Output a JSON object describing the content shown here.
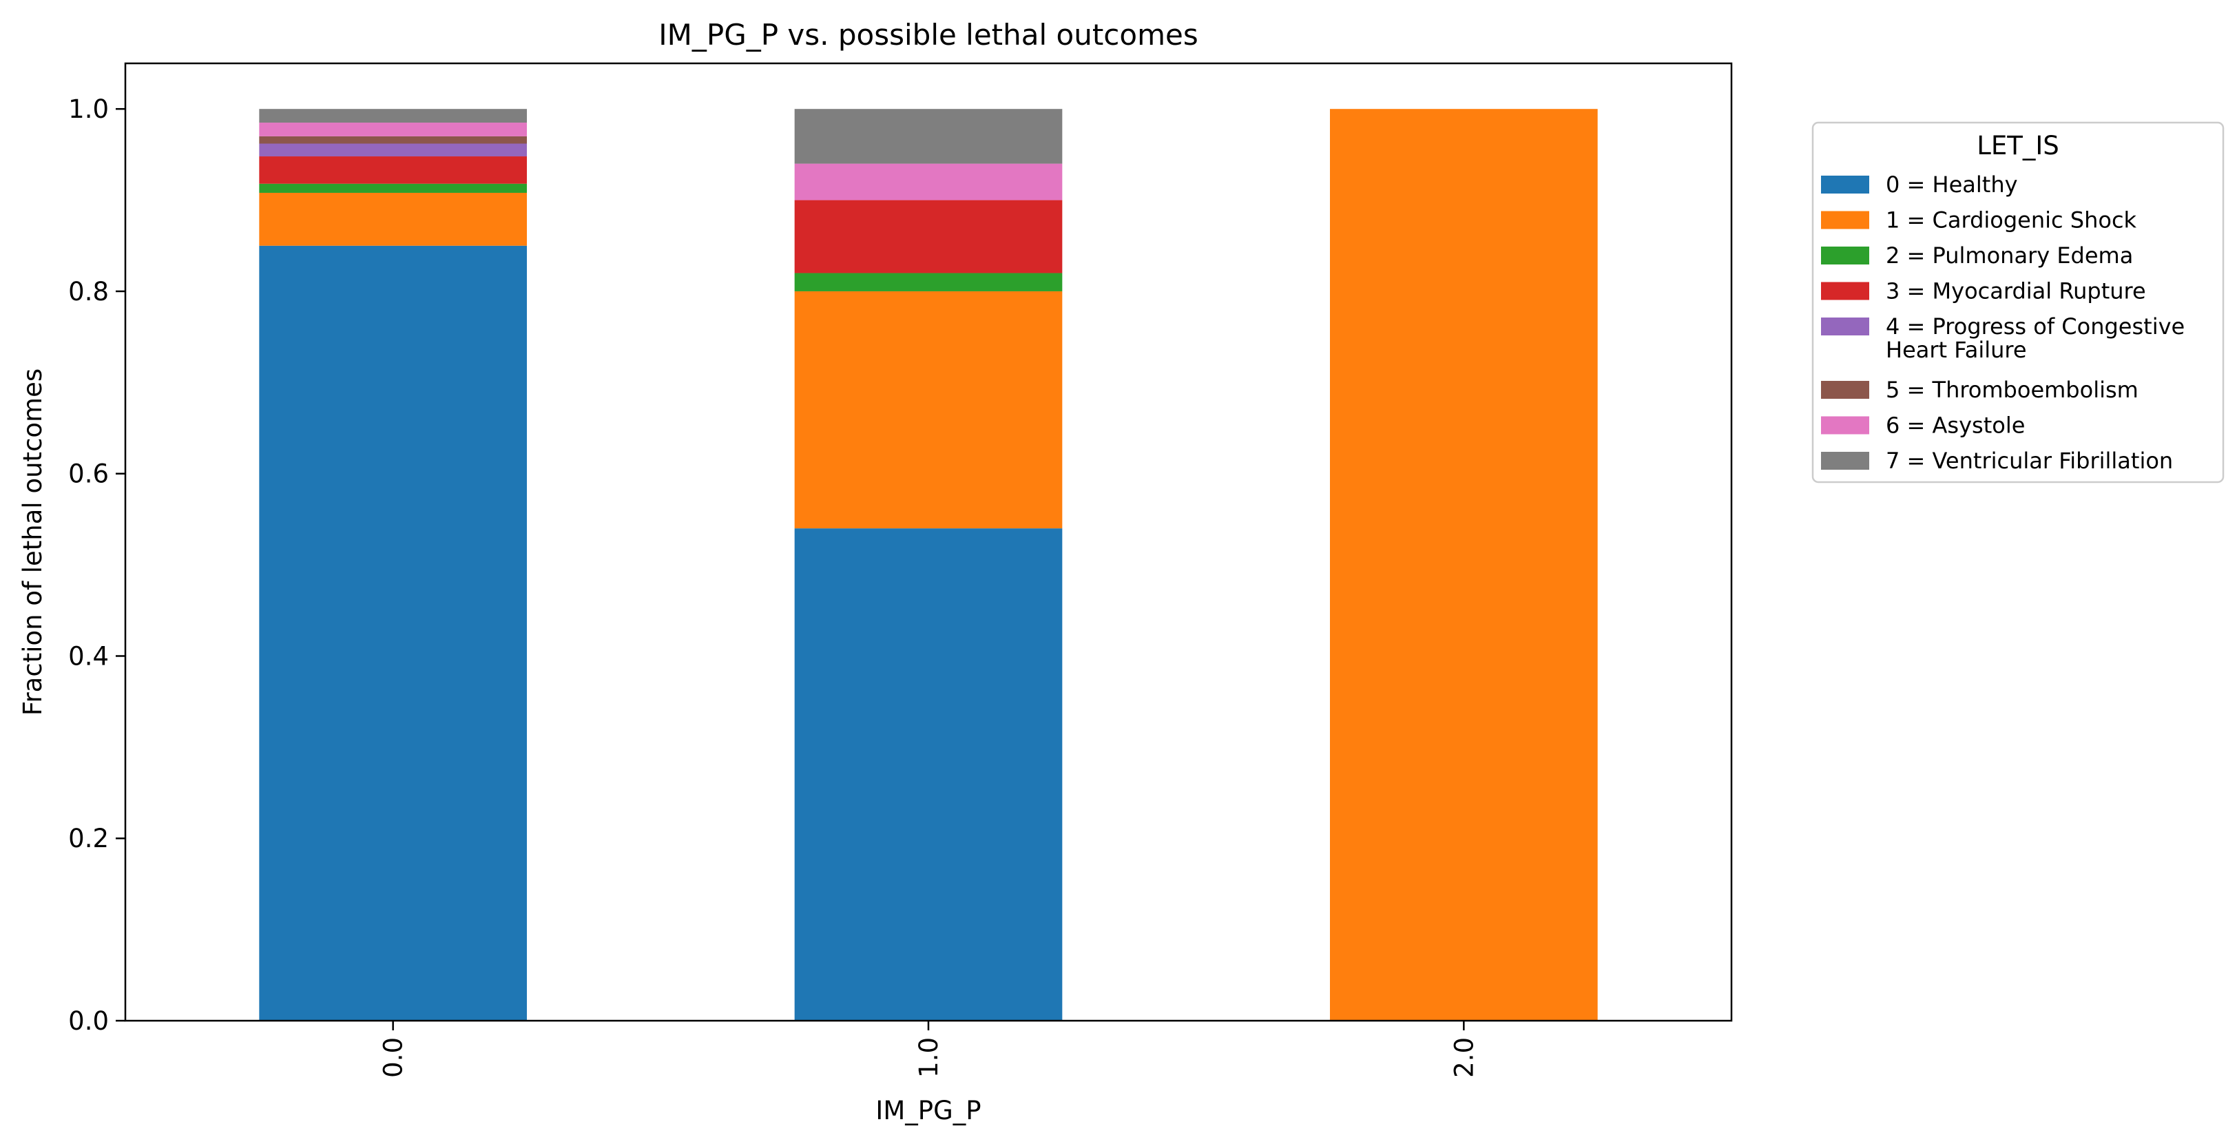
{
  "chart_data": {
    "type": "bar",
    "stacked": true,
    "title": "IM_PG_P vs. possible lethal outcomes",
    "xlabel": "IM_PG_P",
    "ylabel": "Fraction of lethal outcomes",
    "categories": [
      "0.0",
      "1.0",
      "2.0"
    ],
    "ylim": [
      0,
      1.05
    ],
    "yticks": [
      "0.0",
      "0.2",
      "0.4",
      "0.6",
      "0.8",
      "1.0"
    ],
    "grid": false,
    "legend_position": "outside-right",
    "legend_title": "LET_IS",
    "series": [
      {
        "name": "0 = Healthy",
        "color": "#1f77b4",
        "values": [
          0.85,
          0.54,
          0.0
        ]
      },
      {
        "name": "1 = Cardiogenic Shock",
        "color": "#ff7f0e",
        "values": [
          0.058,
          0.26,
          1.0
        ]
      },
      {
        "name": "2 = Pulmonary Edema",
        "color": "#2ca02c",
        "values": [
          0.01,
          0.02,
          0.0
        ]
      },
      {
        "name": "3 = Myocardial Rupture",
        "color": "#d62728",
        "values": [
          0.03,
          0.08,
          0.0
        ]
      },
      {
        "name": "4 = Progress of Congestive Heart Failure",
        "color": "#9467bd",
        "values": [
          0.014,
          0.0,
          0.0
        ]
      },
      {
        "name": "5 = Thromboembolism",
        "color": "#8c564b",
        "values": [
          0.008,
          0.0,
          0.0
        ]
      },
      {
        "name": "6 = Asystole",
        "color": "#e377c2",
        "values": [
          0.015,
          0.04,
          0.0
        ]
      },
      {
        "name": "7 = Ventricular Fibrillation",
        "color": "#7f7f7f",
        "values": [
          0.015,
          0.06,
          0.0
        ]
      }
    ]
  }
}
